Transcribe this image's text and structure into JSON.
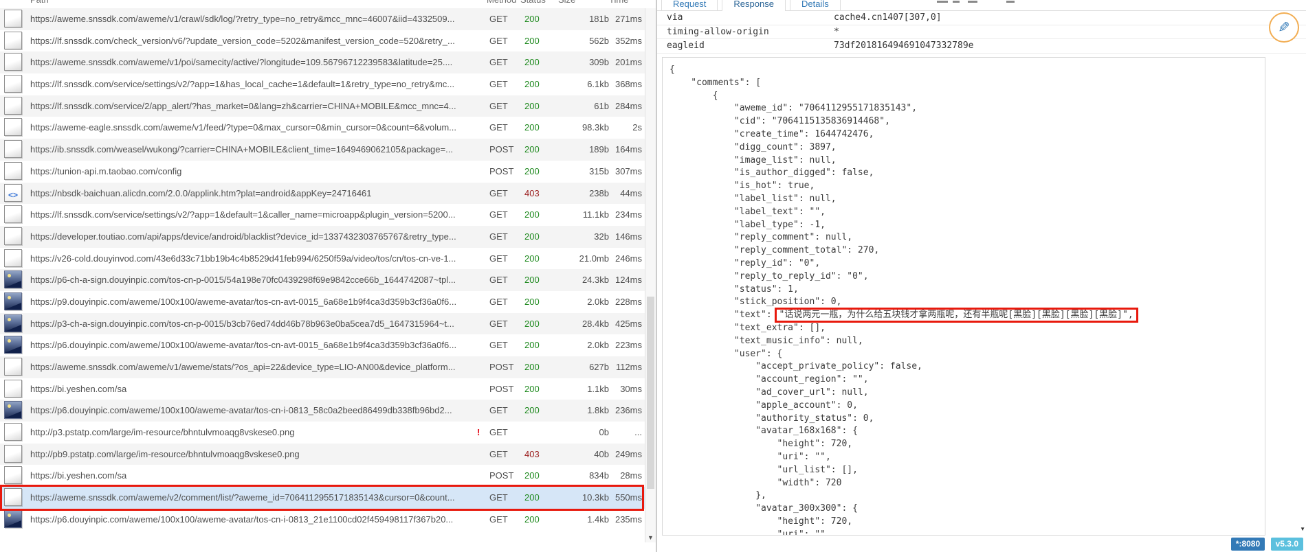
{
  "colors": {
    "accent_blue": "#337ab7",
    "badge_version_bg": "#5bc0de",
    "status_ok_green": "#1f8a1f",
    "status_error_red": "#9c1f1f",
    "annotation_red": "#e8190d",
    "selected_row_bg": "#d6e6f7",
    "fab_ring_orange": "#f2ad52"
  },
  "icons": {
    "compose": "✎",
    "down_arrow": "▼",
    "error_flag": "!",
    "doc": "document-icon",
    "code": "html-code-icon",
    "image": "image-icon"
  },
  "left_panel": {
    "columns": [
      "Path",
      "Method",
      "Status",
      "Size",
      "Time"
    ],
    "rows": [
      {
        "icon": "doc",
        "path": "https://aweme.snssdk.com/aweme/v1/crawl/sdk/log/?retry_type=no_retry&mcc_mnc=46007&iid=4332509...",
        "method": "GET",
        "status": "200",
        "size": "181b",
        "time": "271ms"
      },
      {
        "icon": "doc",
        "path": "https://lf.snssdk.com/check_version/v6/?update_version_code=5202&manifest_version_code=520&retry_...",
        "method": "GET",
        "status": "200",
        "size": "562b",
        "time": "352ms"
      },
      {
        "icon": "doc",
        "path": "https://aweme.snssdk.com/aweme/v1/poi/samecity/active/?longitude=109.56796712239583&latitude=25....",
        "method": "GET",
        "status": "200",
        "size": "309b",
        "time": "201ms"
      },
      {
        "icon": "doc",
        "path": "https://lf.snssdk.com/service/settings/v2/?app=1&has_local_cache=1&default=1&retry_type=no_retry&mc...",
        "method": "GET",
        "status": "200",
        "size": "6.1kb",
        "time": "368ms"
      },
      {
        "icon": "doc",
        "path": "https://lf.snssdk.com/service/2/app_alert/?has_market=0&lang=zh&carrier=CHINA+MOBILE&mcc_mnc=4...",
        "method": "GET",
        "status": "200",
        "size": "61b",
        "time": "284ms"
      },
      {
        "icon": "doc",
        "path": "https://aweme-eagle.snssdk.com/aweme/v1/feed/?type=0&max_cursor=0&min_cursor=0&count=6&volum...",
        "method": "GET",
        "status": "200",
        "size": "98.3kb",
        "time": "2s"
      },
      {
        "icon": "doc",
        "path": "https://ib.snssdk.com/weasel/wukong/?carrier=CHINA+MOBILE&client_time=1649469062105&package=...",
        "method": "POST",
        "status": "200",
        "size": "189b",
        "time": "164ms"
      },
      {
        "icon": "doc",
        "path": "https://tunion-api.m.taobao.com/config",
        "method": "POST",
        "status": "200",
        "size": "315b",
        "time": "307ms"
      },
      {
        "icon": "code",
        "path": "https://nbsdk-baichuan.alicdn.com/2.0.0/applink.htm?plat=android&appKey=24716461",
        "method": "GET",
        "status": "403",
        "size": "238b",
        "time": "44ms"
      },
      {
        "icon": "doc",
        "path": "https://lf.snssdk.com/service/settings/v2/?app=1&default=1&caller_name=microapp&plugin_version=5200...",
        "method": "GET",
        "status": "200",
        "size": "11.1kb",
        "time": "234ms"
      },
      {
        "icon": "doc",
        "path": "https://developer.toutiao.com/api/apps/device/android/blacklist?device_id=1337432303765767&retry_type...",
        "method": "GET",
        "status": "200",
        "size": "32b",
        "time": "146ms"
      },
      {
        "icon": "doc",
        "path": "https://v26-cold.douyinvod.com/43e6d33c71bb19b4c4b8529d41feb994/6250f59a/video/tos/cn/tos-cn-ve-1...",
        "method": "GET",
        "status": "200",
        "size": "21.0mb",
        "time": "246ms"
      },
      {
        "icon": "image",
        "path": "https://p6-ch-a-sign.douyinpic.com/tos-cn-p-0015/54a198e70fc0439298f69e9842cce66b_1644742087~tpl...",
        "method": "GET",
        "status": "200",
        "size": "24.3kb",
        "time": "124ms"
      },
      {
        "icon": "image",
        "path": "https://p9.douyinpic.com/aweme/100x100/aweme-avatar/tos-cn-avt-0015_6a68e1b9f4ca3d359b3cf36a0f6...",
        "method": "GET",
        "status": "200",
        "size": "2.0kb",
        "time": "228ms"
      },
      {
        "icon": "image",
        "path": "https://p3-ch-a-sign.douyinpic.com/tos-cn-p-0015/b3cb76ed74dd46b78b963e0ba5cea7d5_1647315964~t...",
        "method": "GET",
        "status": "200",
        "size": "28.4kb",
        "time": "425ms"
      },
      {
        "icon": "image",
        "path": "https://p6.douyinpic.com/aweme/100x100/aweme-avatar/tos-cn-avt-0015_6a68e1b9f4ca3d359b3cf36a0f6...",
        "method": "GET",
        "status": "200",
        "size": "2.0kb",
        "time": "223ms"
      },
      {
        "icon": "doc",
        "path": "https://aweme.snssdk.com/aweme/v1/aweme/stats/?os_api=22&device_type=LIO-AN00&device_platform...",
        "method": "POST",
        "status": "200",
        "size": "627b",
        "time": "112ms"
      },
      {
        "icon": "doc",
        "path": "https://bi.yeshen.com/sa",
        "method": "POST",
        "status": "200",
        "size": "1.1kb",
        "time": "30ms"
      },
      {
        "icon": "image",
        "path": "https://p6.douyinpic.com/aweme/100x100/aweme-avatar/tos-cn-i-0813_58c0a2beed86499db338fb96bd2...",
        "method": "GET",
        "status": "200",
        "size": "1.8kb",
        "time": "236ms"
      },
      {
        "icon": "doc",
        "path": "http://p3.pstatp.com/large/im-resource/bhntulvmoaqg8vskese0.png",
        "flag": "!",
        "method": "GET",
        "status": "",
        "size": "0b",
        "time": "..."
      },
      {
        "icon": "doc",
        "path": "http://pb9.pstatp.com/large/im-resource/bhntulvmoaqg8vskese0.png",
        "method": "GET",
        "status": "403",
        "size": "40b",
        "time": "249ms"
      },
      {
        "icon": "doc",
        "path": "https://bi.yeshen.com/sa",
        "method": "POST",
        "status": "200",
        "size": "834b",
        "time": "28ms"
      },
      {
        "icon": "doc",
        "path": "https://aweme.snssdk.com/aweme/v2/comment/list/?aweme_id=7064112955171835143&cursor=0&count...",
        "method": "GET",
        "status": "200",
        "size": "10.3kb",
        "time": "550ms",
        "selected": true,
        "red_box": true
      },
      {
        "icon": "image",
        "path": "https://p6.douyinpic.com/aweme/100x100/aweme-avatar/tos-cn-i-0813_21e1100cd02f459498117f367b20...",
        "method": "GET",
        "status": "200",
        "size": "1.4kb",
        "time": "235ms"
      }
    ]
  },
  "right_panel": {
    "tabs": {
      "items": [
        "Request",
        "Response",
        "Details"
      ],
      "active": "Response"
    },
    "headers": [
      {
        "name": "via",
        "value": "cache4.cn1407[307,0]"
      },
      {
        "name": "timing-allow-origin",
        "value": "*"
      },
      {
        "name": "eagleid",
        "value": "73df201816494691047332789e"
      }
    ],
    "body": {
      "lines_before": [
        "{",
        "    \"comments\": [",
        "        {",
        "            \"aweme_id\": \"7064112955171835143\",",
        "            \"cid\": \"7064115135836914468\",",
        "            \"create_time\": 1644742476,",
        "            \"digg_count\": 3897,",
        "            \"image_list\": null,",
        "            \"is_author_digged\": false,",
        "            \"is_hot\": true,",
        "            \"label_list\": null,",
        "            \"label_text\": \"\",",
        "            \"label_type\": -1,",
        "            \"reply_comment\": null,",
        "            \"reply_comment_total\": 270,",
        "            \"reply_id\": \"0\",",
        "            \"reply_to_reply_id\": \"0\",",
        "            \"status\": 1,",
        "            \"stick_position\": 0,"
      ],
      "text_line": {
        "prefix": "            \"text\": ",
        "highlighted": "\"话说两元一瓶，为什么给五块钱才拿两瓶呢，还有半瓶呢[黑脸][黑脸][黑脸][黑脸]\","
      },
      "lines_after": [
        "            \"text_extra\": [],",
        "            \"text_music_info\": null,",
        "            \"user\": {",
        "                \"accept_private_policy\": false,",
        "                \"account_region\": \"\",",
        "                \"ad_cover_url\": null,",
        "                \"apple_account\": 0,",
        "                \"authority_status\": 0,",
        "                \"avatar_168x168\": {",
        "                    \"height\": 720,",
        "                    \"uri\": \"\",",
        "                    \"url_list\": [],",
        "                    \"width\": 720",
        "                },",
        "                \"avatar_300x300\": {",
        "                    \"height\": 720,",
        "                    \"uri\": \"\","
      ]
    }
  },
  "footer": {
    "port_badge": "*:8080",
    "version_badge": "v5.3.0"
  }
}
